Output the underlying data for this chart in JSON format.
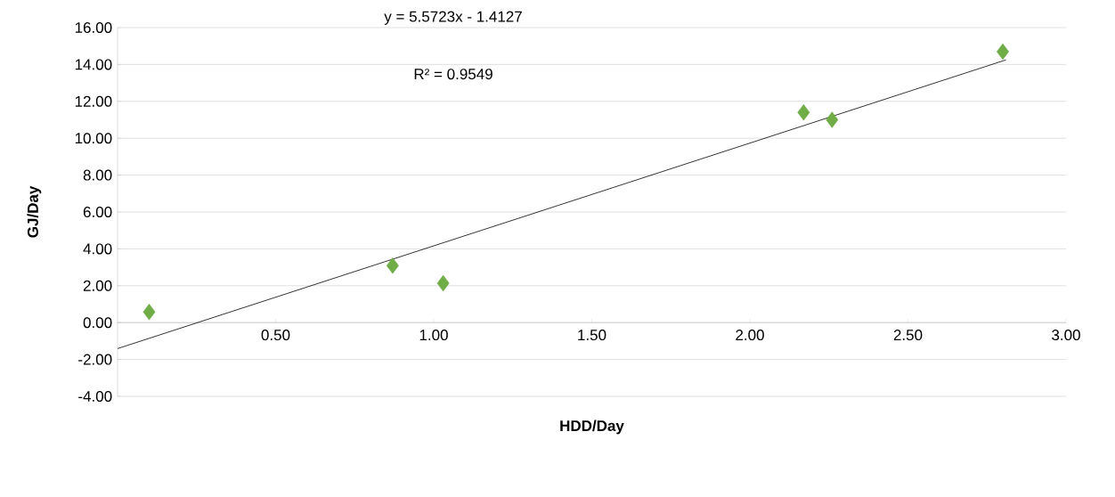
{
  "chart_data": {
    "type": "scatter",
    "xlabel": "HDD/Day",
    "ylabel": "GJ/Day",
    "annotations": [
      "y = 5.5723x - 1.4127",
      "R² = 0.9549"
    ],
    "series": [
      {
        "color": "#70ad47",
        "marker": "diamond",
        "x": [
          0.1,
          0.87,
          1.03,
          2.17,
          2.26,
          2.8
        ],
        "values": [
          0.58,
          3.09,
          2.13,
          11.4,
          11.0,
          14.7
        ]
      },
      {
        "type": "line",
        "marker": "none",
        "color": "#000000",
        "x": [
          0,
          2.81
        ],
        "values": [
          -1.41,
          14.25
        ]
      }
    ],
    "grid": "y",
    "xlim": [
      0,
      3
    ],
    "ylim": [
      -4,
      16
    ],
    "xticks": [
      {
        "value": 0.5,
        "label": "0.50"
      },
      {
        "value": 1.0,
        "label": "1.00"
      },
      {
        "value": 1.5,
        "label": "1.50"
      },
      {
        "value": 2.0,
        "label": "2.00"
      },
      {
        "value": 2.5,
        "label": "2.50"
      },
      {
        "value": 3.0,
        "label": "3.00"
      }
    ],
    "yticks": [
      {
        "value": -4,
        "label": "-4.00"
      },
      {
        "value": -2,
        "label": "-2.00"
      },
      {
        "value": 0,
        "label": "0.00"
      },
      {
        "value": 2,
        "label": "2.00"
      },
      {
        "value": 4,
        "label": "4.00"
      },
      {
        "value": 6,
        "label": "6.00"
      },
      {
        "value": 8,
        "label": "8.00"
      },
      {
        "value": 10,
        "label": "10.00"
      },
      {
        "value": 12,
        "label": "12.00"
      },
      {
        "value": 14,
        "label": "14.00"
      },
      {
        "value": 16,
        "label": "16.00"
      }
    ]
  }
}
